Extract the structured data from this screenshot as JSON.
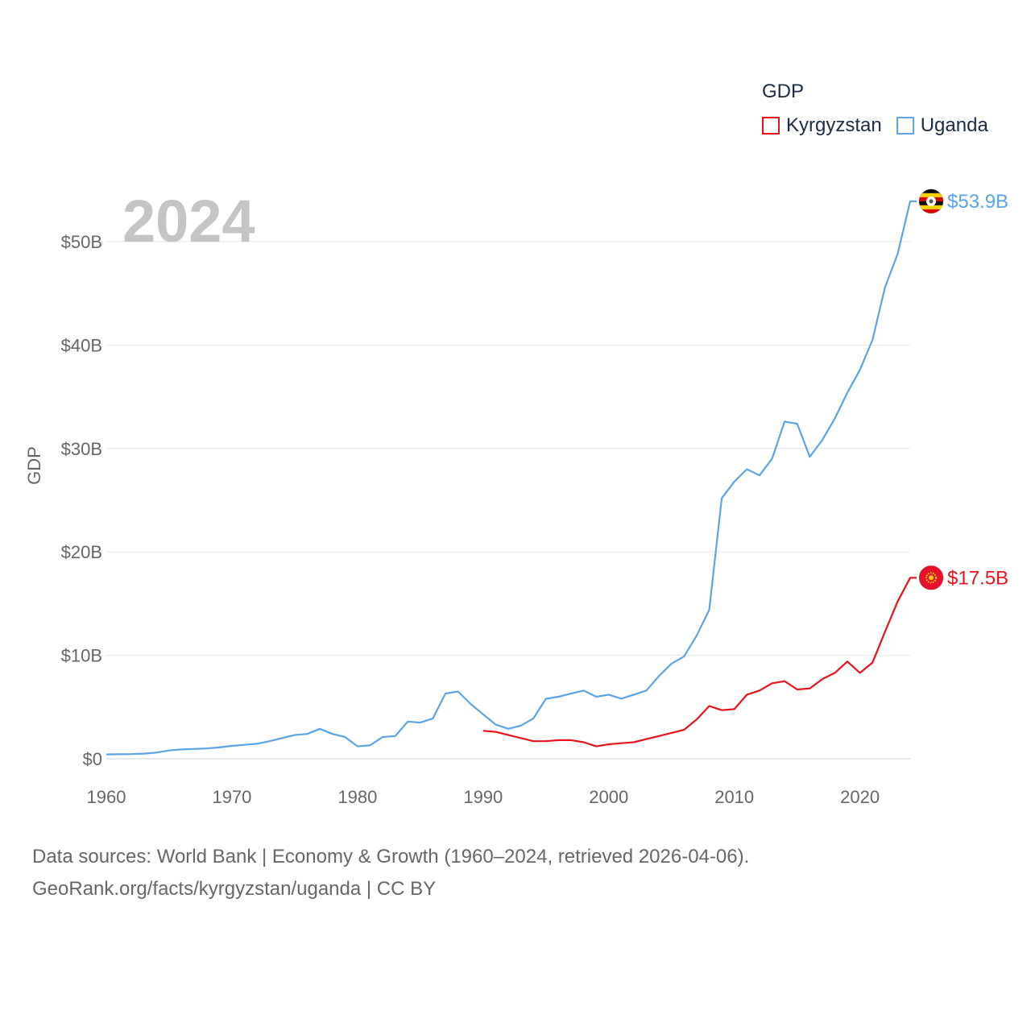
{
  "legend": {
    "title": "GDP",
    "items": [
      {
        "name": "Kyrgyzstan",
        "color": "#e8141c"
      },
      {
        "name": "Uganda",
        "color": "#5ba4e6"
      }
    ]
  },
  "year_label": "2024",
  "footer": {
    "line1": "Data sources: World Bank | Economy & Growth (1960–2024, retrieved 2026-04-06).",
    "line2": "GeoRank.org/facts/kyrgyzstan/uganda | CC BY"
  },
  "chart_data": {
    "type": "line",
    "title": "",
    "xlabel": "",
    "ylabel": "GDP",
    "xlim": [
      1960,
      2024
    ],
    "ylim": [
      0,
      55
    ],
    "x_ticks": [
      1960,
      1970,
      1980,
      1990,
      2000,
      2010,
      2020
    ],
    "x_tick_labels": [
      "1960",
      "1970",
      "1980",
      "1990",
      "2000",
      "2010",
      "2020"
    ],
    "y_ticks": [
      0,
      10,
      20,
      30,
      40,
      50
    ],
    "y_tick_labels": [
      "$0",
      "$10B",
      "$20B",
      "$30B",
      "$40B",
      "$50B"
    ],
    "grid": true,
    "units": "USD billions",
    "series": [
      {
        "name": "Kyrgyzstan",
        "color": "#e8141c",
        "end_label": "$17.5B",
        "flag_icon": "kyrgyzstan-flag-icon",
        "x": [
          1990,
          1991,
          1992,
          1993,
          1994,
          1995,
          1996,
          1997,
          1998,
          1999,
          2000,
          2001,
          2002,
          2003,
          2004,
          2005,
          2006,
          2007,
          2008,
          2009,
          2010,
          2011,
          2012,
          2013,
          2014,
          2015,
          2016,
          2017,
          2018,
          2019,
          2020,
          2021,
          2022,
          2023,
          2024
        ],
        "values": [
          2.7,
          2.6,
          2.3,
          2.0,
          1.7,
          1.7,
          1.8,
          1.8,
          1.6,
          1.2,
          1.4,
          1.5,
          1.6,
          1.9,
          2.2,
          2.5,
          2.8,
          3.8,
          5.1,
          4.7,
          4.8,
          6.2,
          6.6,
          7.3,
          7.5,
          6.7,
          6.8,
          7.7,
          8.3,
          9.4,
          8.3,
          9.3,
          12.3,
          15.2,
          17.5
        ]
      },
      {
        "name": "Uganda",
        "color": "#5ba4e6",
        "end_label": "$53.9B",
        "flag_icon": "uganda-flag-icon",
        "x": [
          1960,
          1961,
          1962,
          1963,
          1964,
          1965,
          1966,
          1967,
          1968,
          1969,
          1970,
          1971,
          1972,
          1973,
          1974,
          1975,
          1976,
          1977,
          1978,
          1979,
          1980,
          1981,
          1982,
          1983,
          1984,
          1985,
          1986,
          1987,
          1988,
          1989,
          1990,
          1991,
          1992,
          1993,
          1994,
          1995,
          1996,
          1997,
          1998,
          1999,
          2000,
          2001,
          2002,
          2003,
          2004,
          2005,
          2006,
          2007,
          2008,
          2009,
          2010,
          2011,
          2012,
          2013,
          2014,
          2015,
          2016,
          2017,
          2018,
          2019,
          2020,
          2021,
          2022,
          2023,
          2024
        ],
        "values": [
          0.42,
          0.44,
          0.45,
          0.5,
          0.6,
          0.8,
          0.9,
          0.95,
          1.0,
          1.1,
          1.25,
          1.35,
          1.45,
          1.7,
          2.0,
          2.3,
          2.4,
          2.9,
          2.4,
          2.1,
          1.2,
          1.3,
          2.1,
          2.2,
          3.6,
          3.5,
          3.9,
          6.3,
          6.5,
          5.3,
          4.3,
          3.3,
          2.9,
          3.2,
          3.9,
          5.8,
          6.0,
          6.3,
          6.6,
          6.0,
          6.2,
          5.8,
          6.2,
          6.6,
          8.0,
          9.2,
          9.9,
          11.9,
          14.4,
          25.2,
          26.8,
          28.0,
          27.4,
          29.0,
          32.6,
          32.4,
          29.2,
          30.8,
          32.9,
          35.4,
          37.6,
          40.5,
          45.6,
          48.8,
          53.9
        ]
      }
    ]
  }
}
